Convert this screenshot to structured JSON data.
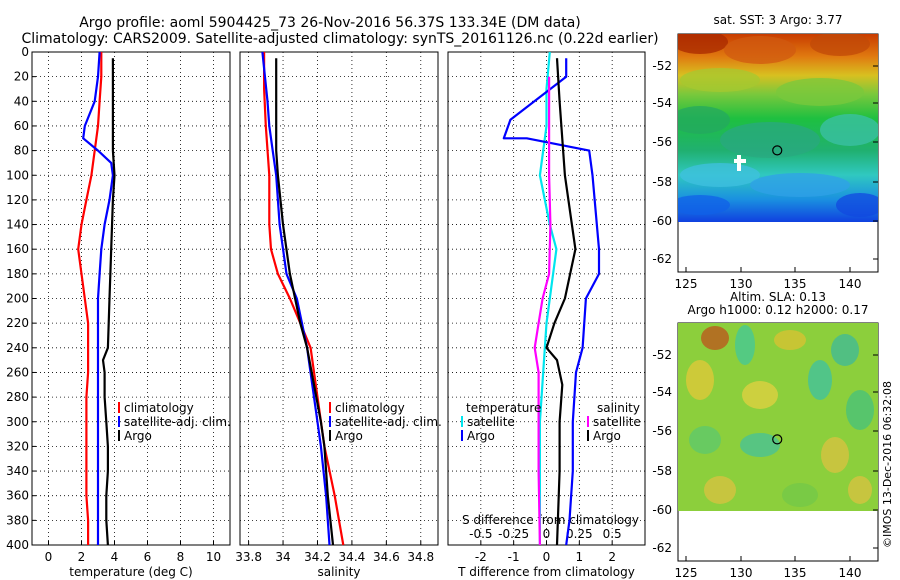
{
  "header": {
    "line1": "Argo profile: aoml 5904425_73 26-Nov-2016 56.37S 133.34E (DM data)",
    "line2": "Climatology: CARS2009. Satellite-adjusted climatology: synTS_20161126.nc (0.22d earlier)"
  },
  "colors": {
    "climatology": "#ff0000",
    "satellite": "#0000ff",
    "argo": "#000000",
    "t_satellite": "#00e5ee",
    "s_satellite": "#ff00ff"
  },
  "chart_data": [
    {
      "id": "temperature",
      "type": "line",
      "xlabel": "temperature (deg C)",
      "xlim": [
        -1,
        11
      ],
      "ylim": [
        400,
        0
      ],
      "xticks": [
        0,
        2,
        4,
        6,
        8,
        10
      ],
      "yticks": [
        0,
        20,
        40,
        60,
        80,
        100,
        120,
        140,
        160,
        180,
        200,
        220,
        240,
        260,
        280,
        300,
        320,
        340,
        360,
        380,
        400
      ],
      "legend": [
        "climatology",
        "satellite-adj. clim.",
        "Argo"
      ],
      "series": [
        {
          "name": "climatology",
          "color": "#ff0000",
          "points": [
            [
              3.2,
              0
            ],
            [
              3.2,
              20
            ],
            [
              3.1,
              40
            ],
            [
              3.0,
              60
            ],
            [
              2.8,
              80
            ],
            [
              2.6,
              100
            ],
            [
              2.3,
              120
            ],
            [
              2.0,
              140
            ],
            [
              1.8,
              160
            ],
            [
              2.0,
              180
            ],
            [
              2.2,
              200
            ],
            [
              2.4,
              220
            ],
            [
              2.4,
              240
            ],
            [
              2.4,
              260
            ],
            [
              2.3,
              280
            ],
            [
              2.3,
              300
            ],
            [
              2.3,
              320
            ],
            [
              2.3,
              340
            ],
            [
              2.3,
              360
            ],
            [
              2.4,
              380
            ],
            [
              2.4,
              400
            ]
          ]
        },
        {
          "name": "satellite-adj. clim.",
          "color": "#0000ff",
          "points": [
            [
              3.1,
              0
            ],
            [
              3.0,
              20
            ],
            [
              2.8,
              40
            ],
            [
              2.2,
              60
            ],
            [
              2.1,
              70
            ],
            [
              3.0,
              80
            ],
            [
              3.8,
              90
            ],
            [
              3.9,
              100
            ],
            [
              3.7,
              120
            ],
            [
              3.4,
              140
            ],
            [
              3.2,
              160
            ],
            [
              3.1,
              180
            ],
            [
              3.0,
              200
            ],
            [
              3.0,
              220
            ],
            [
              3.0,
              240
            ],
            [
              3.0,
              260
            ],
            [
              3.0,
              280
            ],
            [
              3.0,
              300
            ],
            [
              3.0,
              320
            ],
            [
              3.0,
              340
            ],
            [
              3.0,
              360
            ],
            [
              3.0,
              380
            ],
            [
              3.0,
              400
            ]
          ]
        },
        {
          "name": "Argo",
          "color": "#000000",
          "points": [
            [
              3.9,
              5
            ],
            [
              3.9,
              80
            ],
            [
              4.0,
              100
            ],
            [
              3.9,
              120
            ],
            [
              3.8,
              160
            ],
            [
              3.7,
              200
            ],
            [
              3.6,
              240
            ],
            [
              3.3,
              250
            ],
            [
              3.4,
              260
            ],
            [
              3.4,
              280
            ],
            [
              3.5,
              300
            ],
            [
              3.6,
              320
            ],
            [
              3.6,
              340
            ],
            [
              3.5,
              360
            ],
            [
              3.5,
              380
            ],
            [
              3.6,
              400
            ]
          ]
        }
      ]
    },
    {
      "id": "salinity",
      "type": "line",
      "xlabel": "salinity",
      "xlim": [
        33.75,
        34.9
      ],
      "ylim": [
        400,
        0
      ],
      "xticks": [
        33.8,
        34.0,
        34.2,
        34.4,
        34.6,
        34.8
      ],
      "xticklabels": [
        "33.8",
        "34",
        "34.2",
        "34.4",
        "34.6",
        "34.8"
      ],
      "legend": [
        "climatology",
        "satellite-adj. clim.",
        "Argo"
      ],
      "series": [
        {
          "name": "climatology",
          "color": "#ff0000",
          "points": [
            [
              33.89,
              0
            ],
            [
              33.89,
              30
            ],
            [
              33.9,
              60
            ],
            [
              33.92,
              100
            ],
            [
              33.92,
              140
            ],
            [
              33.93,
              160
            ],
            [
              33.97,
              180
            ],
            [
              34.04,
              200
            ],
            [
              34.1,
              220
            ],
            [
              34.16,
              240
            ],
            [
              34.2,
              280
            ],
            [
              34.24,
              320
            ],
            [
              34.3,
              360
            ],
            [
              34.35,
              400
            ]
          ]
        },
        {
          "name": "satellite-adj. clim.",
          "color": "#0000ff",
          "points": [
            [
              33.88,
              0
            ],
            [
              33.91,
              40
            ],
            [
              33.92,
              60
            ],
            [
              33.94,
              80
            ],
            [
              33.96,
              100
            ],
            [
              33.98,
              140
            ],
            [
              34.02,
              180
            ],
            [
              34.08,
              200
            ],
            [
              34.14,
              240
            ],
            [
              34.18,
              280
            ],
            [
              34.22,
              320
            ],
            [
              34.25,
              360
            ],
            [
              34.27,
              400
            ]
          ]
        },
        {
          "name": "Argo",
          "color": "#000000",
          "points": [
            [
              33.96,
              5
            ],
            [
              33.96,
              80
            ],
            [
              33.97,
              100
            ],
            [
              34.0,
              140
            ],
            [
              34.04,
              180
            ],
            [
              34.1,
              220
            ],
            [
              34.14,
              240
            ],
            [
              34.22,
              300
            ],
            [
              34.24,
              320
            ],
            [
              34.26,
              360
            ],
            [
              34.29,
              400
            ]
          ]
        }
      ]
    },
    {
      "id": "difference",
      "type": "line",
      "xlabel": "T difference from climatology",
      "xlabel_top": "S difference from climatology",
      "xlim": [
        -3,
        3
      ],
      "ylim": [
        400,
        0
      ],
      "xticks": [
        -2,
        -1,
        0,
        1,
        2
      ],
      "top_xticks": [
        -0.5,
        -0.25,
        0,
        0.25,
        0.5
      ],
      "top_xticklabels": [
        "-0.5",
        "-0.25",
        "0",
        "0.25",
        "0.5"
      ],
      "legend_left_title": "temperature",
      "legend_right_title": "salinity",
      "legend": [
        "satellite",
        "Argo"
      ],
      "series": [
        {
          "name": "T satellite",
          "color": "#00e5ee",
          "points": [
            [
              0.1,
              0
            ],
            [
              0.0,
              30
            ],
            [
              0.0,
              60
            ],
            [
              -0.2,
              100
            ],
            [
              0.1,
              140
            ],
            [
              0.3,
              160
            ],
            [
              0.2,
              180
            ],
            [
              0.0,
              220
            ],
            [
              -0.1,
              260
            ],
            [
              -0.2,
              300
            ],
            [
              -0.2,
              340
            ],
            [
              -0.2,
              400
            ]
          ]
        },
        {
          "name": "T Argo",
          "color": "#0000ff",
          "points": [
            [
              0.6,
              5
            ],
            [
              0.6,
              20
            ],
            [
              -1.1,
              55
            ],
            [
              -1.3,
              70
            ],
            [
              -0.6,
              70
            ],
            [
              1.3,
              80
            ],
            [
              1.4,
              100
            ],
            [
              1.6,
              160
            ],
            [
              1.6,
              180
            ],
            [
              1.2,
              200
            ],
            [
              1.1,
              240
            ],
            [
              0.9,
              260
            ],
            [
              0.8,
              300
            ],
            [
              0.8,
              340
            ],
            [
              0.7,
              380
            ],
            [
              0.6,
              400
            ]
          ]
        },
        {
          "name": "S satellite",
          "color": "#ff00ff",
          "points": [
            [
              0.02,
              20
            ],
            [
              0.02,
              60
            ],
            [
              0.02,
              100
            ],
            [
              0.03,
              140
            ],
            [
              0.02,
              180
            ],
            [
              -0.03,
              200
            ],
            [
              -0.06,
              220
            ],
            [
              -0.09,
              240
            ],
            [
              -0.06,
              260
            ],
            [
              -0.06,
              300
            ],
            [
              -0.06,
              340
            ],
            [
              -0.05,
              400
            ]
          ]
        },
        {
          "name": "S Argo",
          "color": "#000000",
          "points": [
            [
              0.08,
              5
            ],
            [
              0.1,
              40
            ],
            [
              0.14,
              100
            ],
            [
              0.22,
              160
            ],
            [
              0.14,
              200
            ],
            [
              0.06,
              220
            ],
            [
              0.0,
              240
            ],
            [
              0.08,
              250
            ],
            [
              0.12,
              270
            ],
            [
              0.1,
              300
            ],
            [
              0.1,
              340
            ],
            [
              0.08,
              400
            ]
          ]
        }
      ]
    }
  ],
  "maps": [
    {
      "id": "sst",
      "title": "sat. SST: 3 Argo: 3.77",
      "lon_ticks": [
        "125",
        "130",
        "135",
        "140"
      ],
      "lat_ticks": [
        "-52",
        "-54",
        "-56",
        "-58",
        "-60",
        "-62"
      ],
      "marker": {
        "lon": 133.34,
        "lat": -56.37
      }
    },
    {
      "id": "sla",
      "title1": "Altim. SLA: 0.13",
      "title2": "Argo h1000: 0.12 h2000: 0.17",
      "lon_ticks": [
        "125",
        "130",
        "135",
        "140"
      ],
      "lat_ticks": [
        "-52",
        "-54",
        "-56",
        "-58",
        "-60",
        "-62"
      ],
      "marker": {
        "lon": 133.34,
        "lat": -56.37
      }
    }
  ],
  "watermark": "©IMOS 13-Dec-2016 06:32:08"
}
